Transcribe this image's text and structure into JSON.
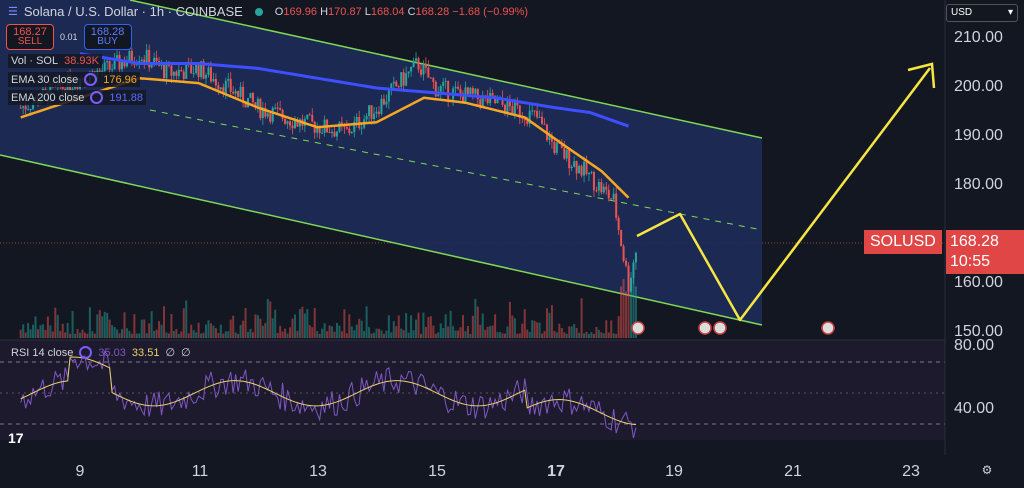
{
  "header": {
    "title": "Solana / U.S. Dollar · 1h · COINBASE",
    "o_label": "O",
    "o": "169.96",
    "h_label": "H",
    "h": "170.87",
    "l_label": "L",
    "l": "168.04",
    "c_label": "C",
    "c": "168.28",
    "change": "−1.68 (−0.99%)"
  },
  "trade": {
    "sell_price": "168.27",
    "sell_label": "SELL",
    "spread": "0.01",
    "buy_price": "168.28",
    "buy_label": "BUY"
  },
  "indicators": [
    {
      "label": "Vol · SOL",
      "value": "38.93K",
      "color": "#ef5350"
    },
    {
      "label": "EMA 30 close",
      "value": "176.96",
      "color": "#f5a623"
    },
    {
      "label": "EMA 200 close",
      "value": "191.88",
      "color": "#3d4fff"
    }
  ],
  "rsi": {
    "label": "RSI 14 close",
    "value1": "35.03",
    "value2": "33.51",
    "na1": "∅",
    "na2": "∅"
  },
  "currency": "USD",
  "symbol_tag": "SOLUSD",
  "last_price": "168.28",
  "countdown": "10:55",
  "colors": {
    "up": "#26a69a",
    "down": "#ef5350",
    "ema30": "#f5a623",
    "ema200": "#3d4fff",
    "channel": "#7ed957",
    "arrow": "#f5e642",
    "rsi": "#7e57c2"
  },
  "chart_data": {
    "type": "candlestick",
    "title": "Solana / U.S. Dollar · 1h · COINBASE",
    "price_axis": {
      "ticks": [
        "210.00",
        "200.00",
        "190.00",
        "180.00",
        "160.00",
        "150.00"
      ],
      "range": [
        150,
        212
      ]
    },
    "rsi_axis": {
      "ticks": [
        "80.00",
        "40.00"
      ]
    },
    "time_axis": {
      "ticks": [
        "9",
        "11",
        "13",
        "15",
        "17",
        "19",
        "21",
        "23"
      ]
    },
    "price_path": {
      "x_day": [
        8,
        9,
        9.5,
        10,
        10.5,
        11,
        12,
        12.7,
        13.5,
        14,
        14.7,
        15,
        16,
        16.7,
        17,
        17.5,
        18,
        18.25,
        18.4
      ],
      "close": [
        196,
        202,
        204,
        207,
        203,
        204,
        196,
        193,
        191,
        196,
        205,
        200,
        197,
        194,
        188,
        183,
        177,
        160,
        168.28
      ]
    },
    "ema30_path": {
      "x_day": [
        8,
        9,
        10,
        11,
        12,
        13,
        14,
        14.8,
        15.5,
        16.5,
        17.2,
        17.8,
        18.3
      ],
      "value": [
        194,
        198,
        202,
        201,
        196,
        192,
        193,
        198,
        197,
        194,
        188,
        183,
        177
      ]
    },
    "ema200_path": {
      "x_day": [
        9,
        10,
        11,
        12,
        13,
        14,
        15,
        16,
        17,
        17.6,
        18.3
      ],
      "value": [
        207,
        205,
        205,
        204,
        202,
        200,
        199,
        198,
        196,
        195,
        192
      ]
    }
  }
}
